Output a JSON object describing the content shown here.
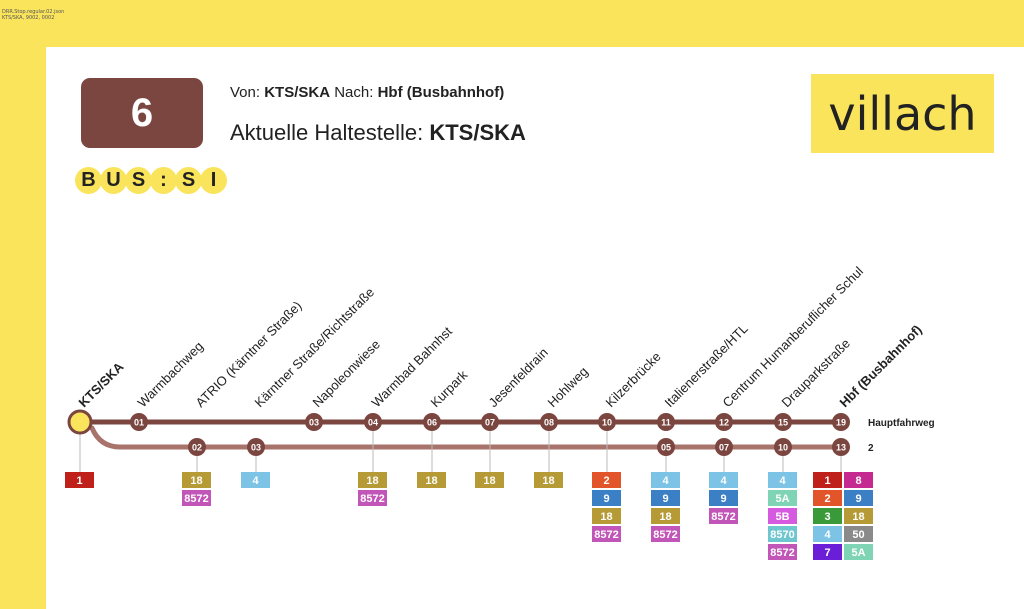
{
  "debug": {
    "line1": "DRR.Stop.regular.02.json",
    "line2": "KTS/SKA, 9002, 0002"
  },
  "header": {
    "line_number": "6",
    "brand_letters": [
      "B",
      "U",
      "S",
      ":",
      "S",
      "I"
    ],
    "von_label": "Von:",
    "von_value": "KTS/SKA",
    "nach_label": "Nach:",
    "nach_value": "Hbf (Busbahnhof)",
    "current_label": "Aktuelle Haltestelle:",
    "current_value": "KTS/SKA",
    "logo_text": "villach"
  },
  "diagram": {
    "colors": {
      "main_line": "#7b4640",
      "branch_line": "#a7736b",
      "current_stop": "#f9e45c",
      "stop_fill": "#7b4640"
    },
    "route_labels": {
      "main": "Hauptfahrweg",
      "branch": "2"
    },
    "stops": [
      {
        "name": "KTS/SKA",
        "bold": true,
        "main": "",
        "branch": "",
        "current": true,
        "transfers": [
          {
            "t": "1",
            "c": "#c0201a"
          }
        ]
      },
      {
        "name": "Warmbachweg",
        "main": "01",
        "branch": "",
        "transfers": []
      },
      {
        "name": "ATRIO (Kärntner Straße)",
        "main": "",
        "branch": "02",
        "transfers": [
          {
            "t": "18",
            "c": "#b59a35"
          },
          {
            "t": "8572",
            "c": "#c155b8"
          }
        ]
      },
      {
        "name": "Kärntner Straße/Richtstraße",
        "main": "",
        "branch": "03",
        "transfers": [
          {
            "t": "4",
            "c": "#7cc3e6"
          }
        ]
      },
      {
        "name": "Napoleonwiese",
        "main": "03",
        "branch": "",
        "transfers": []
      },
      {
        "name": "Warmbad Bahnhst",
        "main": "04",
        "branch": "",
        "transfers": [
          {
            "t": "18",
            "c": "#b59a35"
          },
          {
            "t": "8572",
            "c": "#c155b8"
          }
        ]
      },
      {
        "name": "Kurpark",
        "main": "06",
        "branch": "",
        "transfers": [
          {
            "t": "18",
            "c": "#b59a35"
          }
        ]
      },
      {
        "name": "Jesenfeldrain",
        "main": "07",
        "branch": "",
        "transfers": [
          {
            "t": "18",
            "c": "#b59a35"
          }
        ]
      },
      {
        "name": "Hohlweg",
        "main": "08",
        "branch": "",
        "transfers": [
          {
            "t": "18",
            "c": "#b59a35"
          }
        ]
      },
      {
        "name": "Kilzerbrücke",
        "main": "10",
        "branch": "",
        "transfers": [
          {
            "t": "2",
            "c": "#e2552a"
          },
          {
            "t": "9",
            "c": "#3b7fc4"
          },
          {
            "t": "18",
            "c": "#b59a35"
          },
          {
            "t": "8572",
            "c": "#c155b8"
          }
        ]
      },
      {
        "name": "Italienerstraße/HTL",
        "main": "11",
        "branch": "05",
        "transfers": [
          {
            "t": "4",
            "c": "#7cc3e6"
          },
          {
            "t": "9",
            "c": "#3b7fc4"
          },
          {
            "t": "18",
            "c": "#b59a35"
          },
          {
            "t": "8572",
            "c": "#c155b8"
          }
        ]
      },
      {
        "name": "Centrum Humanberuflicher Schul",
        "main": "12",
        "branch": "07",
        "transfers": [
          {
            "t": "4",
            "c": "#7cc3e6"
          },
          {
            "t": "9",
            "c": "#3b7fc4"
          },
          {
            "t": "8572",
            "c": "#c155b8"
          }
        ]
      },
      {
        "name": "Drauparkstraße",
        "main": "15",
        "branch": "10",
        "transfers": [
          {
            "t": "4",
            "c": "#7cc3e6"
          },
          {
            "t": "5A",
            "c": "#7fd4b5"
          },
          {
            "t": "5B",
            "c": "#d65ae0"
          },
          {
            "t": "8570",
            "c": "#6ec6cf"
          },
          {
            "t": "8572",
            "c": "#c155b8"
          }
        ]
      },
      {
        "name": "Hbf (Busbahnhof)",
        "bold": true,
        "main": "19",
        "branch": "13",
        "transfers": [
          {
            "t": "1",
            "c": "#c0201a"
          },
          {
            "t": "8",
            "c": "#c42a8f"
          },
          {
            "t": "2",
            "c": "#e2552a"
          },
          {
            "t": "9",
            "c": "#3b7fc4"
          },
          {
            "t": "3",
            "c": "#3a9a3a"
          },
          {
            "t": "18",
            "c": "#b59a35"
          },
          {
            "t": "4",
            "c": "#7cc3e6"
          },
          {
            "t": "50",
            "c": "#8a8a8a"
          },
          {
            "t": "7",
            "c": "#6a1fd6"
          },
          {
            "t": "5A",
            "c": "#7fd4b5"
          }
        ]
      }
    ]
  }
}
